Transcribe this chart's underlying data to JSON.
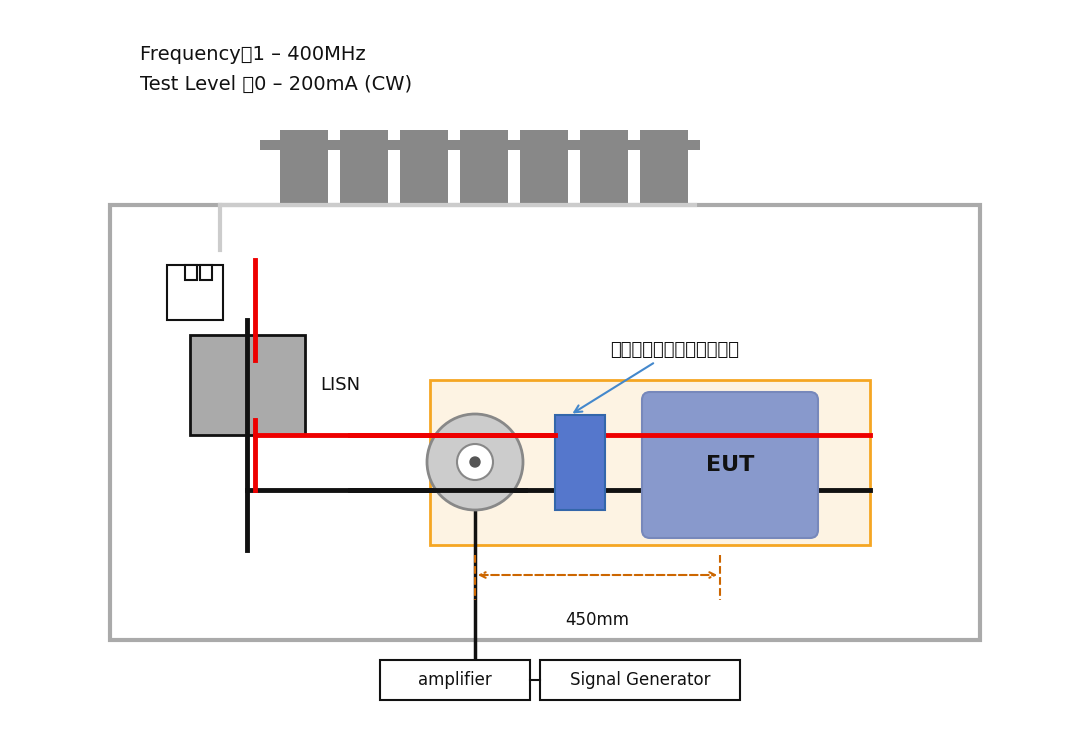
{
  "title_line1": "Frequency：1 – 400MHz",
  "title_line2": "Test Level ：0 – 200mA (CW)",
  "label_lisn": "LISN",
  "label_eut": "EUT",
  "label_amplifier": "amplifier",
  "label_signal_gen": "Signal Generator",
  "label_annotation": "安装了共模押流线圈的基板",
  "label_450mm": "450mm",
  "bg_color": "#ffffff",
  "outer_box_color": "#aaaaaa",
  "inner_orange_box_color": "#f5a623",
  "eut_box_fill": "#8899cc",
  "eut_box_stroke": "#7788bb",
  "cmchoke_fill": "#5577cc",
  "cmchoke_stroke": "#4466bb",
  "lisn_fill": "#aaaaaa",
  "battery_stroke": "#000000",
  "wire_red": "#ee0000",
  "wire_black": "#111111",
  "finger_fill": "#888888",
  "toroid_fill": "#bbbbbb",
  "toroid_stroke": "#888888",
  "arrow_color": "#4488cc",
  "dim_arrow_color": "#cc6600"
}
